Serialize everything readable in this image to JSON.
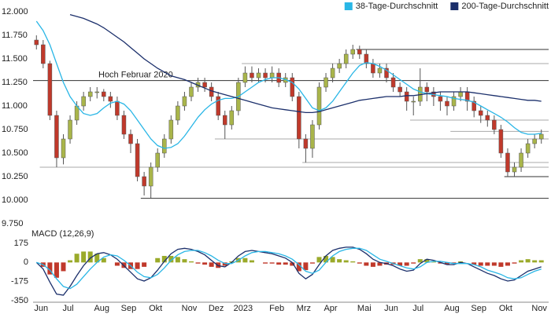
{
  "chart_data": [
    {
      "type": "candlestick",
      "legend": "top-right",
      "categories": [
        "Jun",
        null,
        null,
        null,
        "Jul",
        null,
        null,
        null,
        null,
        "Aug",
        null,
        null,
        null,
        "Sep",
        null,
        null,
        null,
        "Okt",
        null,
        null,
        null,
        null,
        "Nov",
        null,
        null,
        null,
        "Dez",
        null,
        null,
        null,
        "2023",
        null,
        null,
        null,
        null,
        "Feb",
        null,
        null,
        null,
        "Mrz",
        null,
        null,
        null,
        "Apr",
        null,
        null,
        null,
        null,
        "Mai",
        null,
        null,
        null,
        "Jun",
        null,
        null,
        null,
        "Jul",
        null,
        null,
        null,
        null,
        "Aug",
        null,
        null,
        null,
        "Sep",
        null,
        null,
        null,
        "Okt",
        null,
        null,
        null,
        null,
        "Nov",
        null
      ],
      "open": [
        11700,
        11650,
        11450,
        10900,
        10450,
        10650,
        10850,
        11000,
        11100,
        11150,
        11150,
        11100,
        11050,
        10900,
        10700,
        10600,
        10250,
        10150,
        10350,
        10500,
        10650,
        10850,
        11000,
        11100,
        11200,
        11250,
        11200,
        11100,
        10900,
        10800,
        10950,
        11250,
        11350,
        11300,
        11350,
        11300,
        11350,
        11250,
        11300,
        11100,
        10650,
        10550,
        10800,
        11200,
        11300,
        11400,
        11450,
        11550,
        11600,
        11550,
        11450,
        11350,
        11400,
        11300,
        11200,
        11150,
        11050,
        11050,
        11200,
        11150,
        11100,
        11050,
        11000,
        11100,
        11150,
        11050,
        10950,
        10900,
        10850,
        10750,
        10500,
        10300,
        10350,
        10500,
        10600,
        10650
      ],
      "high": [
        11750,
        11700,
        11480,
        10950,
        10700,
        10900,
        11050,
        11150,
        11200,
        11200,
        11180,
        11150,
        11100,
        10950,
        10750,
        10650,
        10300,
        10400,
        10550,
        10700,
        10900,
        11050,
        11150,
        11250,
        11300,
        11300,
        11250,
        11150,
        10950,
        11000,
        11300,
        11420,
        11420,
        11400,
        11400,
        11420,
        11400,
        11350,
        11350,
        11150,
        10700,
        10850,
        11250,
        11350,
        11450,
        11500,
        11600,
        11650,
        11640,
        11600,
        11500,
        11450,
        11450,
        11350,
        11250,
        11200,
        11100,
        11400,
        11250,
        11200,
        11150,
        11100,
        11150,
        11200,
        11200,
        11100,
        11000,
        10950,
        10900,
        10800,
        10550,
        10400,
        10550,
        10650,
        10700,
        10750
      ],
      "low": [
        11600,
        11400,
        10850,
        10350,
        10380,
        10600,
        10800,
        10950,
        11050,
        11080,
        11050,
        10980,
        10850,
        10650,
        10500,
        10200,
        10050,
        10020,
        10300,
        10450,
        10600,
        10800,
        10950,
        11050,
        11150,
        11150,
        11050,
        10850,
        10650,
        10750,
        10900,
        11200,
        11250,
        11250,
        11250,
        11250,
        11200,
        11200,
        11050,
        10550,
        10400,
        10450,
        10750,
        11150,
        11250,
        11350,
        11400,
        11500,
        11500,
        11400,
        11300,
        11300,
        11250,
        11150,
        11100,
        10950,
        10900,
        11000,
        11050,
        11000,
        10950,
        10900,
        10950,
        11050,
        10950,
        10880,
        10820,
        10780,
        10700,
        10450,
        10250,
        10250,
        10300,
        10450,
        10550,
        10600
      ],
      "close": [
        11650,
        11450,
        10900,
        10450,
        10650,
        10850,
        11000,
        11100,
        11150,
        11150,
        11100,
        11050,
        10900,
        10700,
        10600,
        10250,
        10150,
        10350,
        10500,
        10650,
        10850,
        11000,
        11100,
        11200,
        11250,
        11200,
        11100,
        10900,
        10800,
        10950,
        11250,
        11350,
        11300,
        11350,
        11300,
        11350,
        11250,
        11300,
        11100,
        10650,
        10550,
        10800,
        11200,
        11300,
        11400,
        11450,
        11550,
        11600,
        11550,
        11450,
        11350,
        11400,
        11300,
        11200,
        11150,
        11050,
        11050,
        11200,
        11150,
        11100,
        11050,
        11000,
        11100,
        11150,
        11050,
        10950,
        10900,
        10850,
        10750,
        10500,
        10300,
        10350,
        10500,
        10600,
        10650,
        10700
      ],
      "up_color": "#a9b54a",
      "down_color": "#c0392b",
      "series": [
        {
          "name": "38-Tage-Durchschnitt",
          "color": "#29b6e6",
          "values": [
            11900,
            11800,
            11650,
            11450,
            11250,
            11100,
            11000,
            10920,
            10900,
            10920,
            10980,
            11030,
            11050,
            11020,
            10950,
            10850,
            10750,
            10650,
            10580,
            10550,
            10560,
            10600,
            10680,
            10780,
            10880,
            10960,
            11020,
            11060,
            11080,
            11080,
            11100,
            11150,
            11200,
            11250,
            11280,
            11300,
            11300,
            11280,
            11250,
            11180,
            11080,
            10980,
            10950,
            10980,
            11050,
            11150,
            11250,
            11350,
            11430,
            11460,
            11450,
            11420,
            11380,
            11330,
            11280,
            11230,
            11180,
            11150,
            11130,
            11120,
            11110,
            11100,
            11080,
            11070,
            11060,
            11040,
            11000,
            10960,
            10920,
            10880,
            10830,
            10770,
            10720,
            10700,
            10700,
            10710
          ]
        },
        {
          "name": "200-Tage-Durchschnitt",
          "color": "#1b2f6b",
          "values": [
            null,
            null,
            null,
            null,
            null,
            11970,
            11950,
            11930,
            11900,
            11870,
            11830,
            11780,
            11730,
            11680,
            11620,
            11560,
            11500,
            11450,
            11400,
            11360,
            11320,
            11300,
            11280,
            11250,
            11220,
            11190,
            11160,
            11140,
            11120,
            11100,
            11080,
            11060,
            11040,
            11020,
            11000,
            10980,
            10970,
            10960,
            10950,
            10940,
            10930,
            10930,
            10940,
            10960,
            10980,
            11000,
            11020,
            11040,
            11060,
            11070,
            11080,
            11090,
            11100,
            11100,
            11100,
            11110,
            11110,
            11120,
            11130,
            11140,
            11150,
            11150,
            11150,
            11150,
            11150,
            11140,
            11130,
            11120,
            11110,
            11100,
            11090,
            11080,
            11070,
            11060,
            11060,
            11050
          ]
        }
      ],
      "levels": [
        {
          "value": 11600,
          "from": 48,
          "color": "#333"
        },
        {
          "value": 11450,
          "from": 31,
          "color": "#aaa"
        },
        {
          "value": 11270,
          "from": 0,
          "color": "#333",
          "label": "Hoch Februar 2020"
        },
        {
          "value": 10850,
          "from": 56,
          "color": "#aaa"
        },
        {
          "value": 10730,
          "from": 62,
          "color": "#aaa"
        },
        {
          "value": 10650,
          "from": 27,
          "color": "#aaa"
        },
        {
          "value": 10400,
          "from": 40,
          "color": "#aaa"
        },
        {
          "value": 10350,
          "from": 1,
          "color": "#aaa"
        },
        {
          "value": 10250,
          "from": 70,
          "color": "#333"
        },
        {
          "value": 10020,
          "from": 16,
          "color": "#333"
        }
      ],
      "ylim": [
        9750,
        12000
      ],
      "yticks": [
        {
          "value": 12000,
          "label": "12.000"
        },
        {
          "value": 11750,
          "label": "11.750"
        },
        {
          "value": 11500,
          "label": "11.500"
        },
        {
          "value": 11250,
          "label": "11.250"
        },
        {
          "value": 11000,
          "label": "11.000"
        },
        {
          "value": 10750,
          "label": "10.750"
        },
        {
          "value": 10500,
          "label": "10.500"
        },
        {
          "value": 10250,
          "label": "10.250"
        },
        {
          "value": 10000,
          "label": "10.000"
        },
        {
          "value": 9750,
          "label": "9.750"
        }
      ]
    },
    {
      "type": "macd",
      "title": "MACD (12,26,9)",
      "series": [
        {
          "color": "#1b2f6b",
          "values": [
            0,
            -60,
            -180,
            -290,
            -300,
            -220,
            -120,
            -30,
            40,
            80,
            90,
            70,
            30,
            -30,
            -90,
            -150,
            -170,
            -140,
            -70,
            10,
            80,
            120,
            130,
            120,
            100,
            70,
            20,
            -30,
            -40,
            0,
            60,
            100,
            110,
            100,
            90,
            80,
            60,
            40,
            0,
            -100,
            -150,
            -110,
            -20,
            60,
            110,
            130,
            140,
            140,
            120,
            80,
            30,
            0,
            -10,
            -30,
            -60,
            -80,
            -70,
            -10,
            30,
            20,
            0,
            -20,
            -20,
            0,
            -10,
            -40,
            -70,
            -100,
            -120,
            -150,
            -170,
            -160,
            -120,
            -80,
            -60,
            -40
          ]
        },
        {
          "color": "#29b6e6",
          "values": [
            0,
            -20,
            -70,
            -150,
            -220,
            -240,
            -200,
            -130,
            -60,
            0,
            50,
            70,
            60,
            20,
            -30,
            -90,
            -130,
            -140,
            -110,
            -50,
            20,
            70,
            100,
            110,
            110,
            90,
            60,
            20,
            -10,
            -10,
            20,
            60,
            90,
            100,
            100,
            90,
            80,
            60,
            30,
            -20,
            -80,
            -100,
            -70,
            0,
            60,
            100,
            120,
            130,
            130,
            110,
            70,
            30,
            10,
            -10,
            -30,
            -50,
            -60,
            -40,
            0,
            10,
            10,
            0,
            -10,
            -10,
            -10,
            -20,
            -40,
            -70,
            -90,
            -110,
            -140,
            -150,
            -140,
            -110,
            -80,
            -60
          ]
        }
      ],
      "histogram": [
        0,
        -40,
        -110,
        -140,
        -80,
        20,
        80,
        100,
        100,
        80,
        40,
        0,
        -30,
        -50,
        -60,
        -60,
        -40,
        0,
        40,
        60,
        60,
        50,
        30,
        10,
        -10,
        -20,
        -40,
        -50,
        -30,
        10,
        40,
        40,
        20,
        0,
        -10,
        -10,
        -20,
        -20,
        -30,
        -80,
        -70,
        -10,
        50,
        60,
        50,
        30,
        20,
        10,
        -10,
        -30,
        -40,
        -30,
        -20,
        -20,
        -30,
        -30,
        -10,
        30,
        30,
        10,
        -10,
        -20,
        -10,
        10,
        0,
        -20,
        -30,
        -30,
        -30,
        -40,
        -30,
        -10,
        20,
        30,
        20,
        20
      ],
      "positive_color": "#9aaa2a",
      "negative_color": "#c0392b",
      "ylim": [
        -350,
        175
      ],
      "yticks": [
        175,
        0,
        -175,
        -350
      ]
    }
  ]
}
